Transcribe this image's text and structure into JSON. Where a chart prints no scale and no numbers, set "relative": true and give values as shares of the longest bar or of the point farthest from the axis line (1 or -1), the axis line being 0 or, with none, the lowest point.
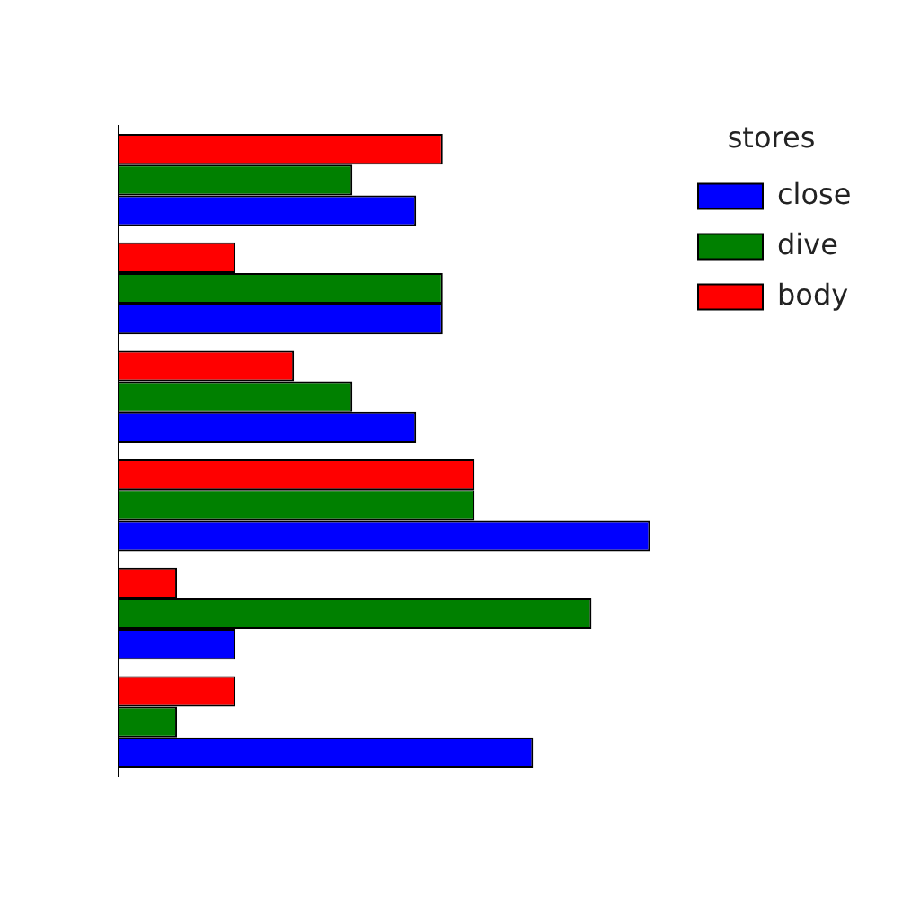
{
  "chart_data": {
    "type": "bar",
    "orientation": "horizontal",
    "relative": true,
    "legend_title": "stores",
    "legend": "right",
    "categories": [
      null,
      null,
      null,
      null,
      null,
      null
    ],
    "series": [
      {
        "name": "close",
        "color": "#0000ff",
        "values": [
          0.56,
          0.61,
          0.56,
          1,
          0.22,
          0.78
        ]
      },
      {
        "name": "dive",
        "color": "#008000",
        "values": [
          0.44,
          0.61,
          0.44,
          0.67,
          0.89,
          0.11
        ]
      },
      {
        "name": "body",
        "color": "#ff0000",
        "values": [
          0.61,
          0.22,
          0.33,
          0.67,
          0.11,
          0.22
        ]
      }
    ]
  }
}
